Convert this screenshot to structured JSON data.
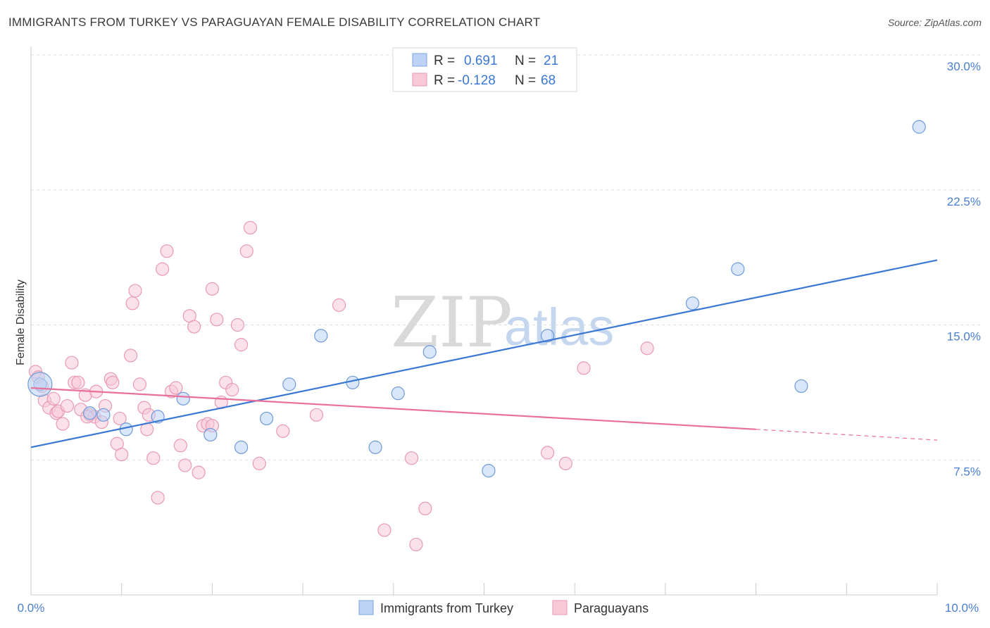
{
  "title": "IMMIGRANTS FROM TURKEY VS PARAGUAYAN FEMALE DISABILITY CORRELATION CHART",
  "source": "Source: ZipAtlas.com",
  "watermark": {
    "zip": "ZIP",
    "atlas": "atlas"
  },
  "colors": {
    "blue": "#3a78d4",
    "blue_fill": "#bcd3f5",
    "pink": "#e8709a",
    "pink_fill": "#f8c9d7",
    "grid": "#dddddd",
    "label": "#4a7fd0"
  },
  "legend": {
    "rows": [
      {
        "r_label": "R =",
        "r_value": "0.691",
        "n_label": "N =",
        "n_value": "21"
      },
      {
        "r_label": "R =",
        "r_value": "-0.128",
        "n_label": "N =",
        "n_value": "68"
      }
    ]
  },
  "chart_data": {
    "type": "scatter",
    "title": "IMMIGRANTS FROM TURKEY VS PARAGUAYAN FEMALE DISABILITY CORRELATION CHART",
    "xlabel": "",
    "ylabel": "Female Disability",
    "xlim": [
      0,
      10
    ],
    "ylim": [
      0,
      30
    ],
    "x_tick_labels": [
      "0.0%",
      "10.0%"
    ],
    "y_ticks": [
      7.5,
      15.0,
      22.5,
      30.0
    ],
    "y_tick_labels": [
      "7.5%",
      "15.0%",
      "22.5%",
      "30.0%"
    ],
    "series": [
      {
        "name": "Immigrants from Turkey",
        "r": 0.691,
        "n": 21,
        "trend": {
          "x0": 0.0,
          "y0": 8.2,
          "x1": 10.0,
          "y1": 18.6
        },
        "points": [
          [
            0.1,
            11.7
          ],
          [
            0.65,
            10.1
          ],
          [
            0.8,
            10.0
          ],
          [
            1.05,
            9.2
          ],
          [
            1.4,
            9.9
          ],
          [
            1.68,
            10.9
          ],
          [
            1.98,
            8.9
          ],
          [
            2.32,
            8.2
          ],
          [
            2.6,
            9.8
          ],
          [
            2.85,
            11.7
          ],
          [
            3.2,
            14.4
          ],
          [
            3.55,
            11.8
          ],
          [
            4.05,
            11.2
          ],
          [
            3.8,
            8.2
          ],
          [
            4.4,
            13.5
          ],
          [
            5.05,
            6.9
          ],
          [
            5.7,
            14.4
          ],
          [
            7.3,
            16.2
          ],
          [
            7.8,
            18.1
          ],
          [
            8.5,
            11.6
          ],
          [
            9.8,
            26.0
          ]
        ]
      },
      {
        "name": "Paraguayans",
        "r": -0.128,
        "n": 68,
        "trend": {
          "x0": 0.0,
          "y0": 11.5,
          "x1": 8.0,
          "y1": 9.2
        },
        "trend_dashed": {
          "x0": 8.0,
          "y0": 9.2,
          "x1": 10.0,
          "y1": 8.6
        },
        "points": [
          [
            0.05,
            12.4
          ],
          [
            0.08,
            12.1
          ],
          [
            0.12,
            11.6
          ],
          [
            0.15,
            10.8
          ],
          [
            0.2,
            10.4
          ],
          [
            0.25,
            10.9
          ],
          [
            0.28,
            10.1
          ],
          [
            0.3,
            10.2
          ],
          [
            0.35,
            9.5
          ],
          [
            0.4,
            10.5
          ],
          [
            0.45,
            12.9
          ],
          [
            0.48,
            11.8
          ],
          [
            0.52,
            11.8
          ],
          [
            0.55,
            10.3
          ],
          [
            0.6,
            11.1
          ],
          [
            0.65,
            10.0
          ],
          [
            0.7,
            9.9
          ],
          [
            0.72,
            11.3
          ],
          [
            0.78,
            9.6
          ],
          [
            0.82,
            10.5
          ],
          [
            0.88,
            12.0
          ],
          [
            0.9,
            11.8
          ],
          [
            0.95,
            8.4
          ],
          [
            0.98,
            9.8
          ],
          [
            1.0,
            7.8
          ],
          [
            1.1,
            13.3
          ],
          [
            1.12,
            16.2
          ],
          [
            1.15,
            16.9
          ],
          [
            1.2,
            11.7
          ],
          [
            1.25,
            10.4
          ],
          [
            1.3,
            10.0
          ],
          [
            1.35,
            7.6
          ],
          [
            1.4,
            5.4
          ],
          [
            1.45,
            18.1
          ],
          [
            1.5,
            19.1
          ],
          [
            1.55,
            11.3
          ],
          [
            1.6,
            11.5
          ],
          [
            1.65,
            8.3
          ],
          [
            1.7,
            7.2
          ],
          [
            1.75,
            15.5
          ],
          [
            1.8,
            14.9
          ],
          [
            1.85,
            6.8
          ],
          [
            1.9,
            9.4
          ],
          [
            1.95,
            9.5
          ],
          [
            2.0,
            17.0
          ],
          [
            2.05,
            15.3
          ],
          [
            2.1,
            10.7
          ],
          [
            2.15,
            11.8
          ],
          [
            2.22,
            11.4
          ],
          [
            2.28,
            15.0
          ],
          [
            2.32,
            13.9
          ],
          [
            2.38,
            19.1
          ],
          [
            2.42,
            20.4
          ],
          [
            2.52,
            7.3
          ],
          [
            2.78,
            9.1
          ],
          [
            3.15,
            10.0
          ],
          [
            3.4,
            16.1
          ],
          [
            3.9,
            3.6
          ],
          [
            4.2,
            7.6
          ],
          [
            4.25,
            2.8
          ],
          [
            4.35,
            4.8
          ],
          [
            5.7,
            7.9
          ],
          [
            5.9,
            7.3
          ],
          [
            6.1,
            12.6
          ],
          [
            6.8,
            13.7
          ],
          [
            1.28,
            9.2
          ],
          [
            2.0,
            9.4
          ],
          [
            0.62,
            9.9
          ]
        ]
      }
    ],
    "bottom_legend": [
      "Immigrants from Turkey",
      "Paraguayans"
    ]
  }
}
